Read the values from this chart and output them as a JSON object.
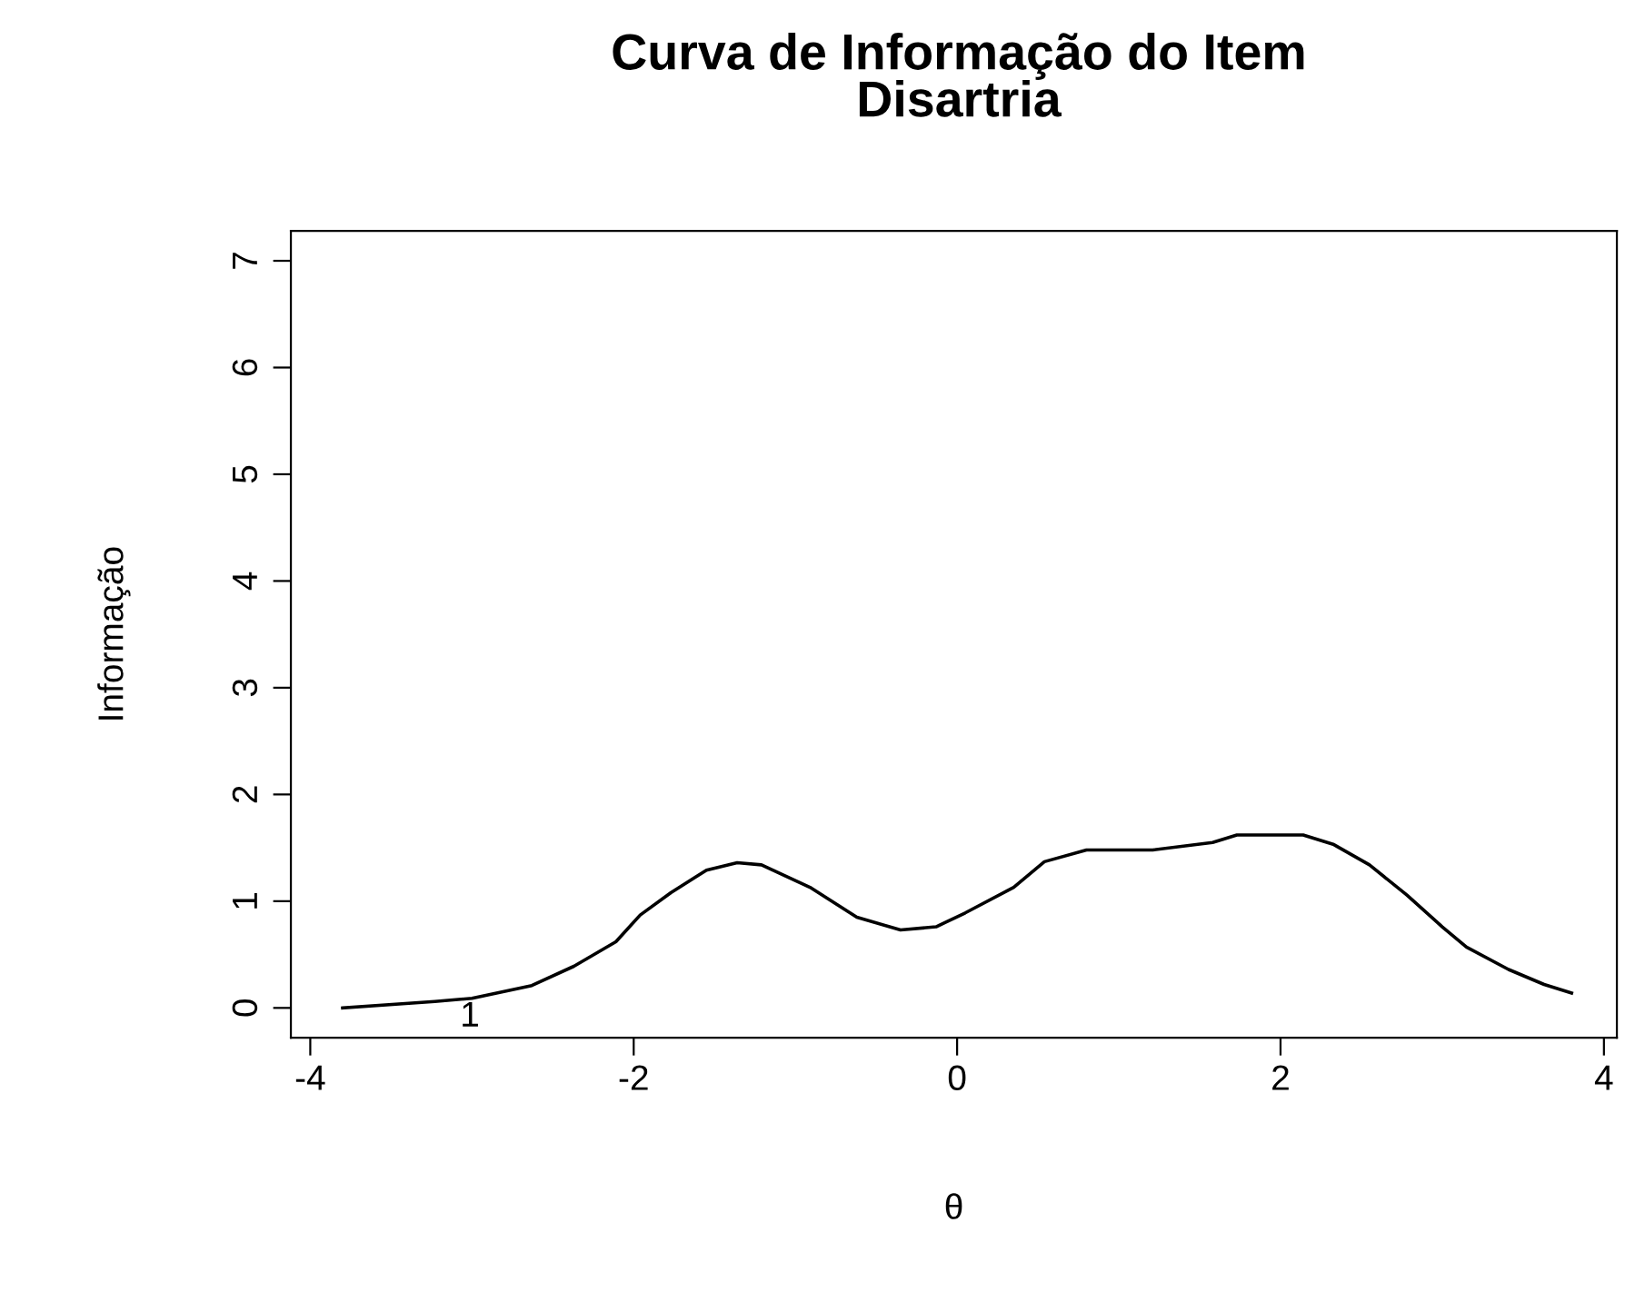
{
  "chart_data": {
    "type": "line",
    "title": "Curva de Informação do Item\nDisartria",
    "xlabel": "θ",
    "ylabel": "Informação",
    "x": [
      -3.8,
      -3.23,
      -3.0,
      -2.63,
      -2.37,
      -2.11,
      -1.96,
      -1.77,
      -1.55,
      -1.36,
      -1.21,
      -0.91,
      -0.62,
      -0.35,
      -0.13,
      0.05,
      0.35,
      0.54,
      0.8,
      1.21,
      1.58,
      1.73,
      2.14,
      2.33,
      2.55,
      2.78,
      3.0,
      3.15,
      3.41,
      3.63,
      3.8
    ],
    "series": [
      {
        "color": "#000000",
        "values": [
          0.0,
          0.06,
          0.09,
          0.21,
          0.39,
          0.62,
          0.87,
          1.08,
          1.29,
          1.36,
          1.34,
          1.13,
          0.85,
          0.73,
          0.76,
          0.89,
          1.13,
          1.37,
          1.48,
          1.48,
          1.55,
          1.62,
          1.62,
          1.53,
          1.34,
          1.06,
          0.76,
          0.57,
          0.36,
          0.22,
          0.14
        ]
      }
    ],
    "xlim": [
      -4.12,
      4.08
    ],
    "ylim": [
      -0.28,
      7.28
    ],
    "xticks": [
      -4,
      -2,
      0,
      2,
      4
    ],
    "yticks": [
      0,
      1,
      2,
      3,
      4,
      5,
      6,
      7
    ],
    "annotations": [
      "1"
    ],
    "grid": false,
    "legend": false,
    "marker": "none",
    "line_style": "solid"
  }
}
